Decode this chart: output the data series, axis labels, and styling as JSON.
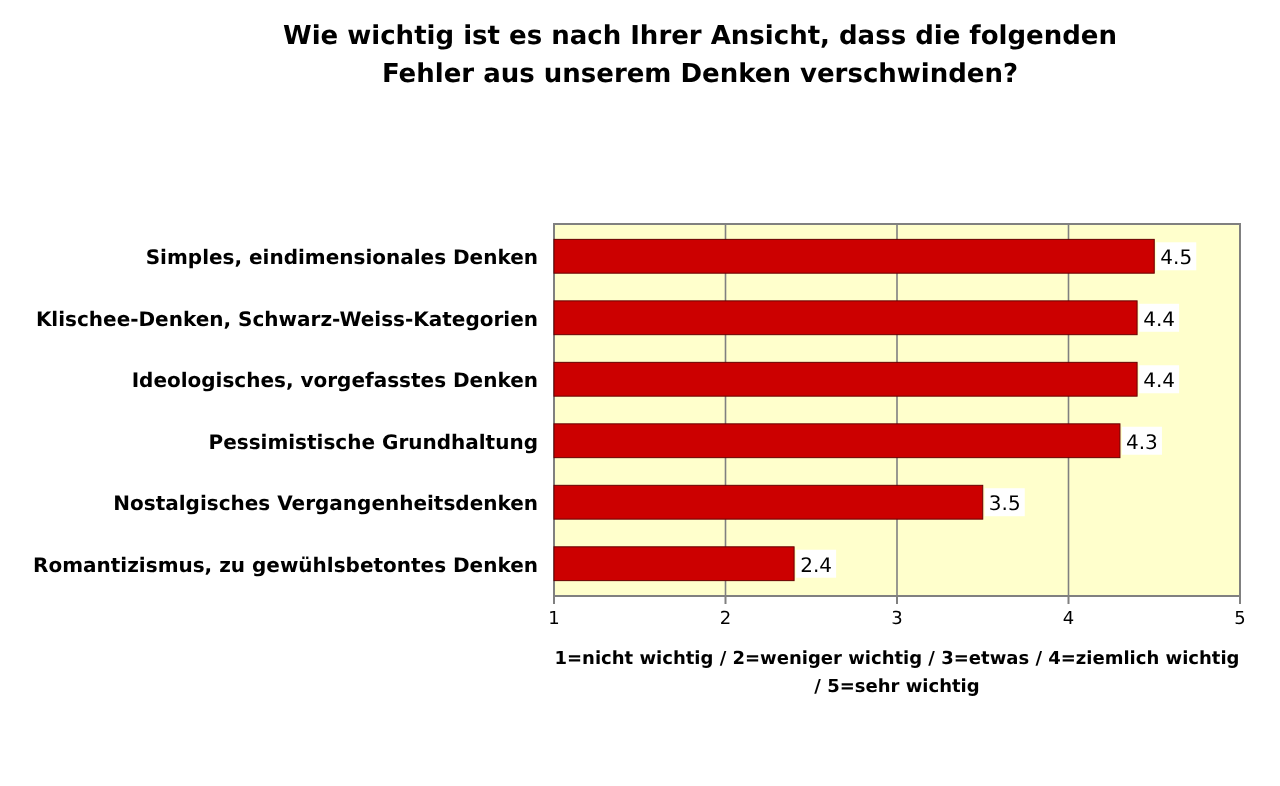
{
  "chart_data": {
    "type": "bar",
    "orientation": "horizontal",
    "title": "Wie wichtig ist es nach Ihrer Ansicht, dass die folgenden Fehler aus unserem Denken verschwinden?",
    "xlabel": "1=nicht wichtig / 2=weniger wichtig / 3=etwas / 4=ziemlich wichtig / 5=sehr wichtig",
    "categories": [
      "Simples, eindimensionales Denken",
      "Klischee-Denken, Schwarz-Weiss-Kategorien",
      "Ideologisches, vorgefasstes Denken",
      "Pessimistische Grundhaltung",
      "Nostalgisches Vergangenheitsdenken",
      "Romantizismus, zu gewühlsbetontes Denken"
    ],
    "values": [
      4.5,
      4.4,
      4.4,
      4.3,
      3.5,
      2.4
    ],
    "color": "#cc0000",
    "xlim": [
      1,
      5
    ],
    "xticks": [
      1,
      2,
      3,
      4,
      5
    ],
    "grid": "x",
    "data_labels": true
  }
}
